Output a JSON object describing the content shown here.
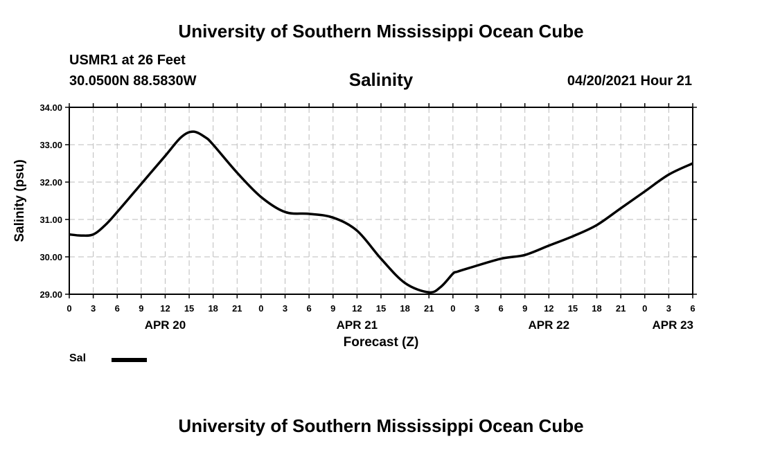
{
  "header": {
    "top_title": "University of Southern Mississippi Ocean Cube",
    "station": "USMR1 at 26 Feet",
    "coords": "30.0500N  88.5830W",
    "variable_title": "Salinity",
    "datetime": "04/20/2021 Hour 21"
  },
  "footer": {
    "bottom_title": "University of Southern Mississippi Ocean Cube"
  },
  "legend": {
    "label": "Sal"
  },
  "colors": {
    "line": "#000000",
    "grid": "#bbbbbb",
    "background": "#ffffff"
  },
  "chart_data": {
    "type": "line",
    "title": "Salinity",
    "xlabel": "Forecast (Z)",
    "ylabel": "Salinity (psu)",
    "ylim": [
      29.0,
      34.0
    ],
    "yticks": [
      "29.00",
      "30.00",
      "31.00",
      "32.00",
      "33.00",
      "34.00"
    ],
    "xlim": [
      0,
      78
    ],
    "xtick_labels": [
      "0",
      "3",
      "6",
      "9",
      "12",
      "15",
      "18",
      "21",
      "0",
      "3",
      "6",
      "9",
      "12",
      "15",
      "18",
      "21",
      "0",
      "3",
      "6",
      "9",
      "12",
      "15",
      "18",
      "21",
      "0",
      "3",
      "6"
    ],
    "date_labels": [
      {
        "label": "APR 20",
        "hour": 12
      },
      {
        "label": "APR 21",
        "hour": 36
      },
      {
        "label": "APR 22",
        "hour": 60
      },
      {
        "label": "APR 23",
        "hour": 78
      }
    ],
    "grid": true,
    "series": [
      {
        "name": "Sal",
        "x": [
          0,
          1.5,
          3,
          4.5,
          6,
          9,
          12,
          14,
          15.5,
          17,
          18,
          21,
          24,
          27,
          30,
          33,
          36,
          39,
          42,
          45,
          46.5,
          48,
          48.5,
          50,
          54,
          57,
          60,
          63,
          66,
          69,
          72,
          75,
          78
        ],
        "values": [
          30.6,
          30.57,
          30.6,
          30.85,
          31.2,
          31.95,
          32.7,
          33.2,
          33.35,
          33.2,
          33.0,
          32.25,
          31.6,
          31.2,
          31.15,
          31.05,
          30.7,
          29.95,
          29.3,
          29.05,
          29.2,
          29.55,
          29.6,
          29.7,
          29.95,
          30.05,
          30.3,
          30.55,
          30.85,
          31.3,
          31.75,
          32.2,
          32.5
        ]
      }
    ]
  }
}
